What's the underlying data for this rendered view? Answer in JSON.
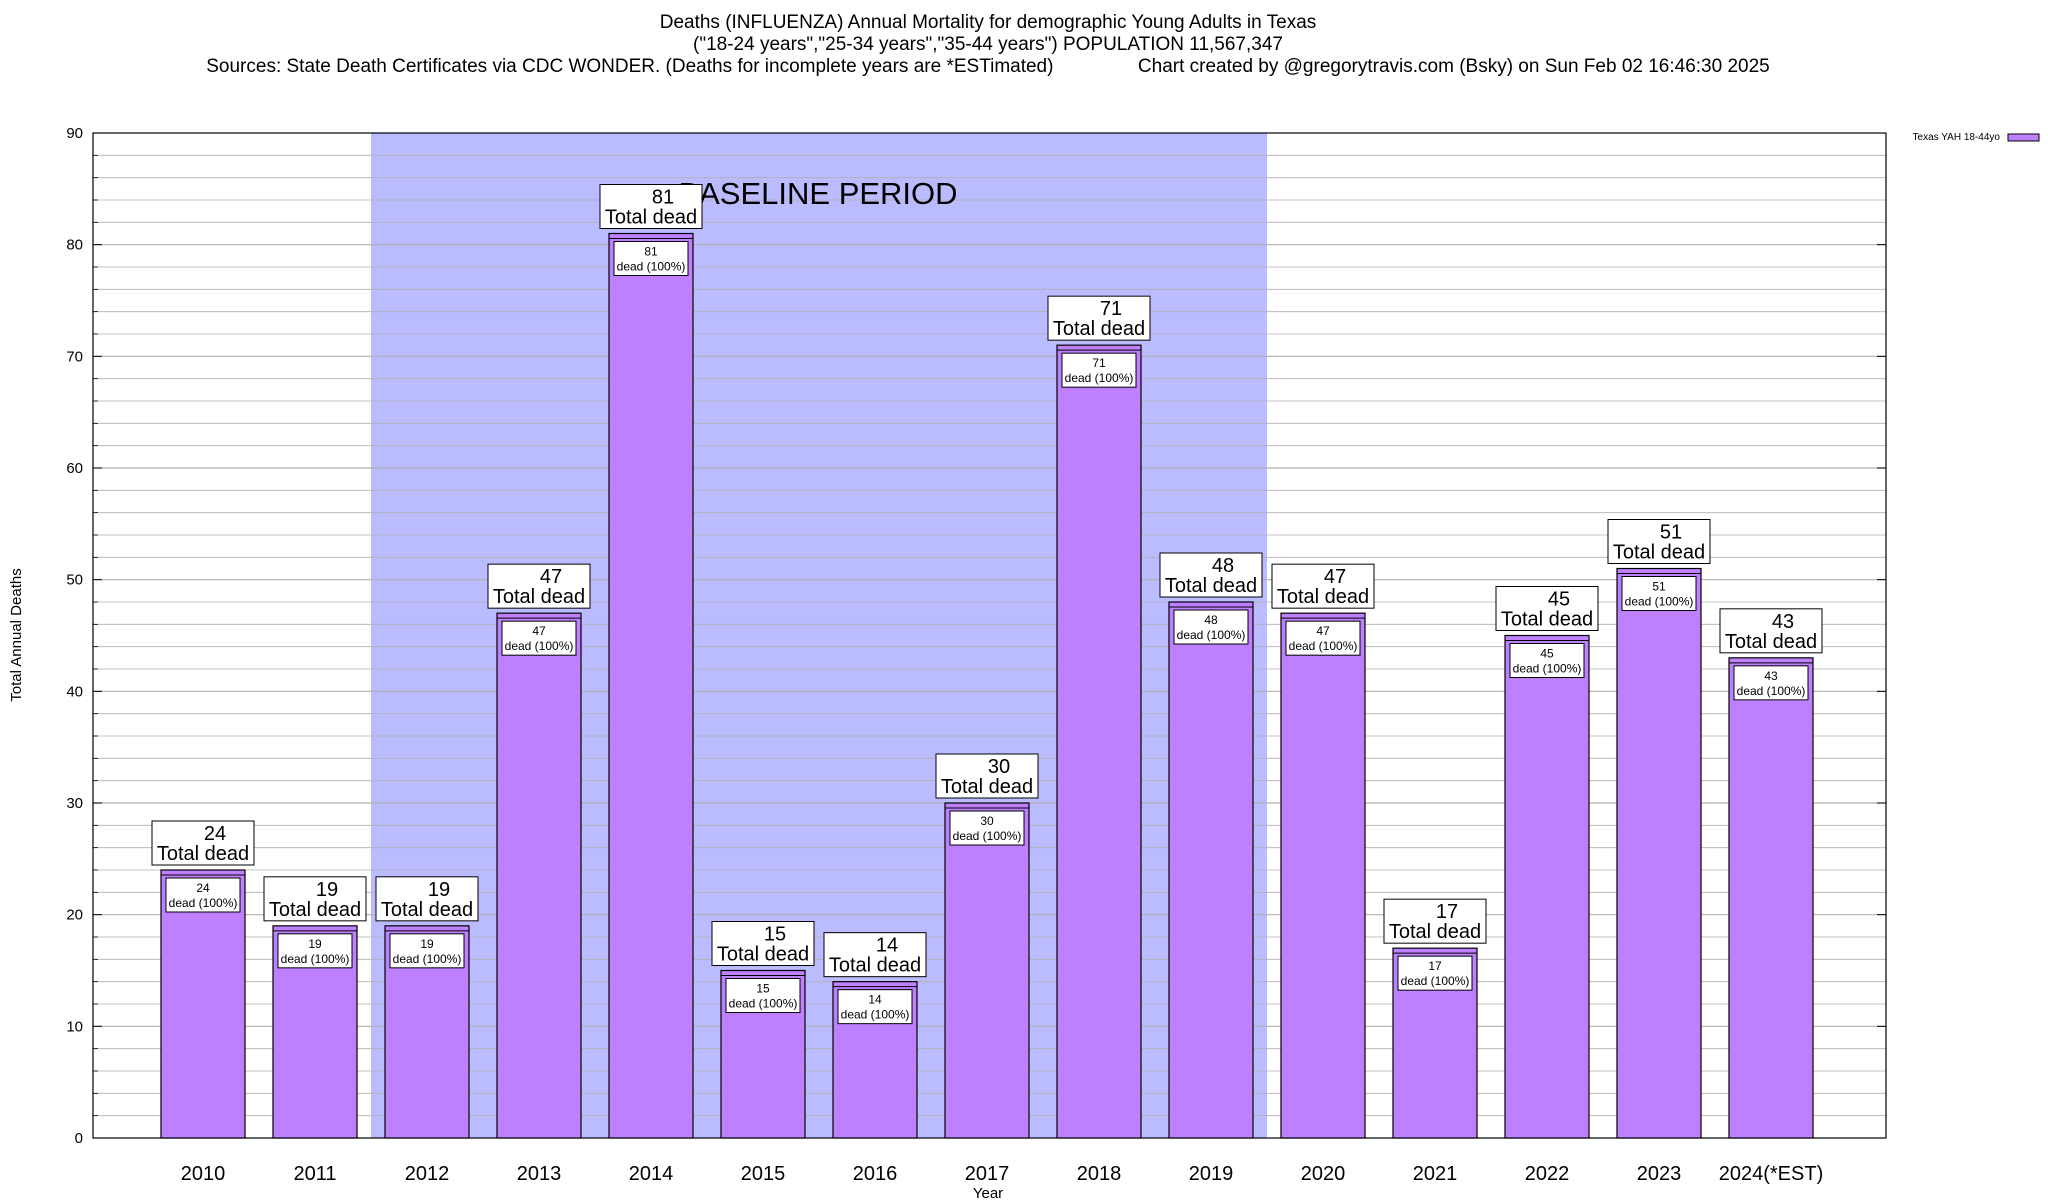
{
  "title_lines": [
    "Deaths (INFLUENZA) Annual Mortality for demographic Young Adults in Texas",
    "(\"18-24 years\",\"25-34 years\",\"35-44 years\") POPULATION 11,567,347",
    "Sources: State Death Certificates via CDC WONDER. (Deaths for incomplete years are *ESTimated)                Chart created by @gregorytravis.com (Bsky) on Sun Feb 02 16:46:30 2025"
  ],
  "chart_data": {
    "type": "bar",
    "categories": [
      "2010",
      "2011",
      "2012",
      "2013",
      "2014",
      "2015",
      "2016",
      "2017",
      "2018",
      "2019",
      "2020",
      "2021",
      "2022",
      "2023",
      "2024(*EST)"
    ],
    "series": [
      {
        "name": "Texas YAH 18-44yo",
        "values": [
          24,
          19,
          19,
          47,
          81,
          15,
          14,
          30,
          71,
          48,
          47,
          17,
          45,
          51,
          43
        ]
      }
    ],
    "xlabel": "Year",
    "ylabel": "Total Annual Deaths",
    "ylim": [
      0,
      90
    ],
    "yticks": [
      0,
      10,
      20,
      30,
      40,
      50,
      60,
      70,
      80,
      90
    ],
    "grid": true,
    "legend_position": "top-right",
    "top_label_suffix": "Total dead",
    "inner_label_suffix": "dead (100%)",
    "shaded_region": {
      "label": "BASELINE PERIOD",
      "from_category": "2012",
      "to_category": "2019"
    },
    "colors": {
      "bar": "#bf80ff",
      "shade": "#bbbbff",
      "grid": "#b0b0b0"
    }
  }
}
